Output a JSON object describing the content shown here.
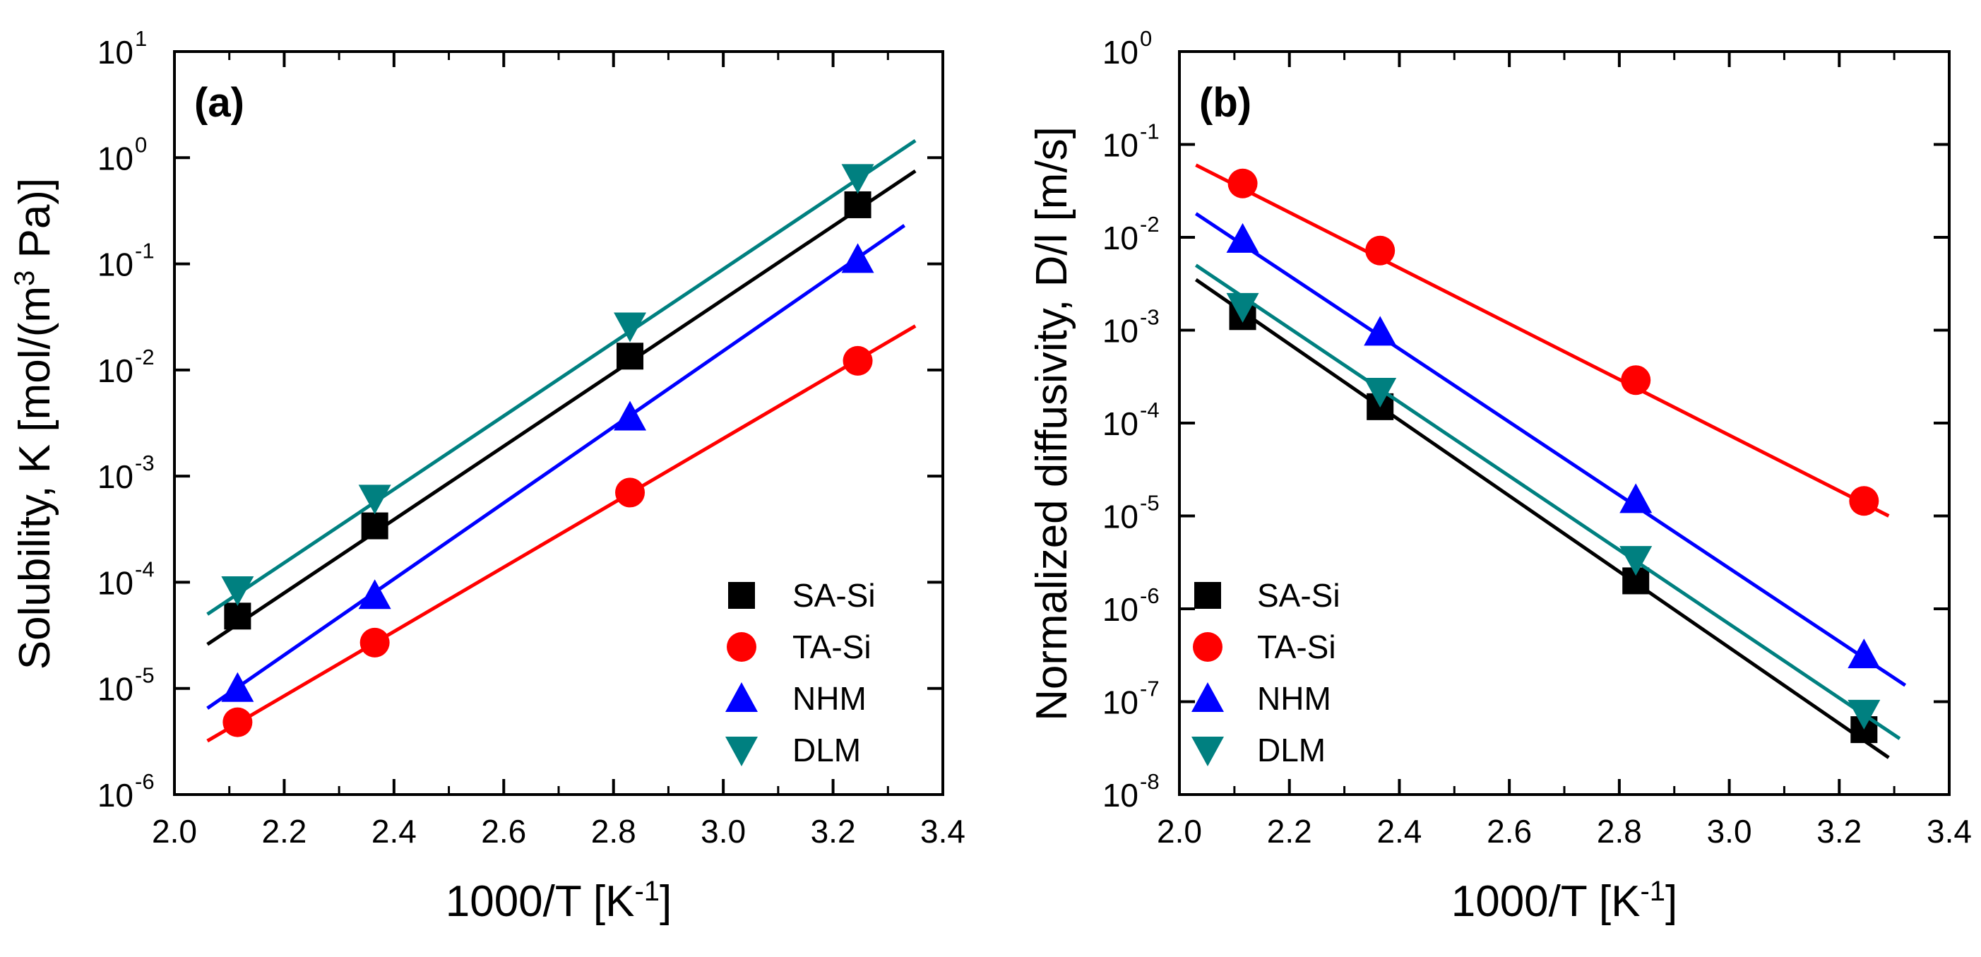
{
  "chart_data": [
    {
      "type": "scatter",
      "panel_label": "(a)",
      "xlabel": {
        "main": "1000/T [K",
        "sup": "-1",
        "end": "]"
      },
      "ylabel": {
        "main": "Solubility, K [mol/(m",
        "sup": "3",
        "end": " Pa)]"
      },
      "yscale": "log",
      "xlim": [
        2.0,
        3.4
      ],
      "ylim_exp": [
        -6,
        1
      ],
      "xticks": [
        "2.0",
        "2.2",
        "2.4",
        "2.6",
        "2.8",
        "3.0",
        "3.2",
        "3.4"
      ],
      "yticks": [
        {
          "base": "10",
          "exp": "-6"
        },
        {
          "base": "10",
          "exp": "-5"
        },
        {
          "base": "10",
          "exp": "-4"
        },
        {
          "base": "10",
          "exp": "-3"
        },
        {
          "base": "10",
          "exp": "-2"
        },
        {
          "base": "10",
          "exp": "-1"
        },
        {
          "base": "10",
          "exp": "0"
        },
        {
          "base": "10",
          "exp": "1"
        }
      ],
      "legend_position": "bottom-right",
      "series": [
        {
          "name": "SA-Si",
          "color": "#000000",
          "marker": "square",
          "x": [
            2.115,
            2.365,
            2.83,
            3.245
          ],
          "y": [
            4.8e-05,
            0.00034,
            0.0135,
            0.36
          ],
          "fit_x": [
            2.06,
            3.35
          ],
          "fit_y": [
            2.6e-05,
            0.75
          ]
        },
        {
          "name": "TA-Si",
          "color": "#ff0000",
          "marker": "circle",
          "x": [
            2.115,
            2.365,
            2.83,
            3.245
          ],
          "y": [
            4.8e-06,
            2.7e-05,
            0.0007,
            0.0122
          ],
          "fit_x": [
            2.06,
            3.35
          ],
          "fit_y": [
            3.2e-06,
            0.026
          ]
        },
        {
          "name": "NHM",
          "color": "#0000ff",
          "marker": "triangle-up",
          "x": [
            2.115,
            2.365,
            2.83,
            3.245
          ],
          "y": [
            1e-05,
            7.5e-05,
            0.0036,
            0.11
          ],
          "fit_x": [
            2.06,
            3.33
          ],
          "fit_y": [
            6.5e-06,
            0.23
          ]
        },
        {
          "name": "DLM",
          "color": "#008080",
          "marker": "triangle-down",
          "x": [
            2.115,
            2.365,
            2.83,
            3.245
          ],
          "y": [
            8.5e-05,
            0.00062,
            0.026,
            0.65
          ],
          "fit_x": [
            2.06,
            3.35
          ],
          "fit_y": [
            5e-05,
            1.45
          ]
        }
      ]
    },
    {
      "type": "scatter",
      "panel_label": "(b)",
      "xlabel": {
        "main": "1000/T [K",
        "sup": "-1",
        "end": "]"
      },
      "ylabel": {
        "main": "Normalized diffusivity, D/l [m/s]",
        "sup": "",
        "end": ""
      },
      "yscale": "log",
      "xlim": [
        2.0,
        3.4
      ],
      "ylim_exp": [
        -8,
        0
      ],
      "xticks": [
        "2.0",
        "2.2",
        "2.4",
        "2.6",
        "2.8",
        "3.0",
        "3.2",
        "3.4"
      ],
      "yticks": [
        {
          "base": "10",
          "exp": "-8"
        },
        {
          "base": "10",
          "exp": "-7"
        },
        {
          "base": "10",
          "exp": "-6"
        },
        {
          "base": "10",
          "exp": "-5"
        },
        {
          "base": "10",
          "exp": "-4"
        },
        {
          "base": "10",
          "exp": "-3"
        },
        {
          "base": "10",
          "exp": "-2"
        },
        {
          "base": "10",
          "exp": "-1"
        },
        {
          "base": "10",
          "exp": "0"
        }
      ],
      "legend_position": "bottom-left",
      "series": [
        {
          "name": "SA-Si",
          "color": "#000000",
          "marker": "square",
          "x": [
            2.115,
            2.365,
            2.83,
            3.245
          ],
          "y": [
            0.0014,
            0.00015,
            2e-06,
            5e-08
          ],
          "fit_x": [
            2.03,
            3.29
          ],
          "fit_y": [
            0.0035,
            2.5e-08
          ]
        },
        {
          "name": "TA-Si",
          "color": "#ff0000",
          "marker": "circle",
          "x": [
            2.115,
            2.365,
            2.83,
            3.245
          ],
          "y": [
            0.038,
            0.0072,
            0.00029,
            1.45e-05
          ],
          "fit_x": [
            2.03,
            3.29
          ],
          "fit_y": [
            0.06,
            1e-05
          ]
        },
        {
          "name": "NHM",
          "color": "#0000ff",
          "marker": "triangle-up",
          "x": [
            2.115,
            2.365,
            2.83,
            3.245
          ],
          "y": [
            0.0095,
            0.00095,
            1.5e-05,
            3.2e-07
          ],
          "fit_x": [
            2.03,
            3.32
          ],
          "fit_y": [
            0.018,
            1.5e-07
          ]
        },
        {
          "name": "DLM",
          "color": "#008080",
          "marker": "triangle-down",
          "x": [
            2.115,
            2.365,
            2.83,
            3.245
          ],
          "y": [
            0.0018,
            0.00022,
            3.4e-06,
            7.5e-08
          ],
          "fit_x": [
            2.03,
            3.31
          ],
          "fit_y": [
            0.005,
            4e-08
          ]
        }
      ]
    }
  ]
}
